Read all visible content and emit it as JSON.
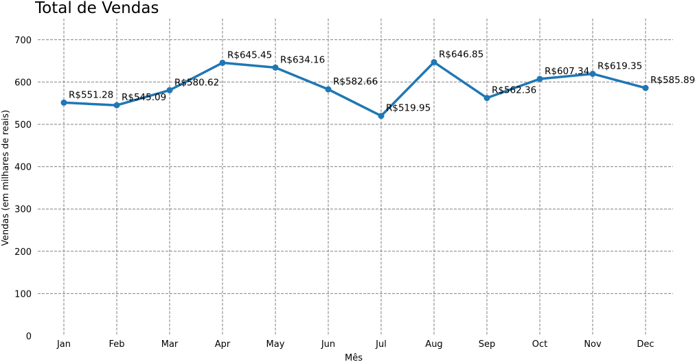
{
  "chart_data": {
    "type": "line",
    "title": "Total de Vendas",
    "xlabel": "Mês",
    "ylabel": "Vendas (em milhares de reais)",
    "categories": [
      "Jan",
      "Feb",
      "Mar",
      "Apr",
      "May",
      "Jun",
      "Jul",
      "Aug",
      "Sep",
      "Oct",
      "Nov",
      "Dec"
    ],
    "values": [
      551.28,
      545.09,
      580.62,
      645.45,
      634.16,
      582.66,
      519.95,
      646.85,
      562.36,
      607.34,
      619.35,
      585.89
    ],
    "data_labels": [
      "R$551.28",
      "R$545.09",
      "R$580.62",
      "R$645.45",
      "R$634.16",
      "R$582.66",
      "R$519.95",
      "R$646.85",
      "R$562.36",
      "R$607.34",
      "R$619.35",
      "R$585.89"
    ],
    "ylim": [
      0,
      750
    ],
    "yticks": [
      0,
      100,
      200,
      300,
      400,
      500,
      600,
      700
    ],
    "grid": true,
    "line_color": "#1f77b4",
    "grid_color": "#808080"
  }
}
